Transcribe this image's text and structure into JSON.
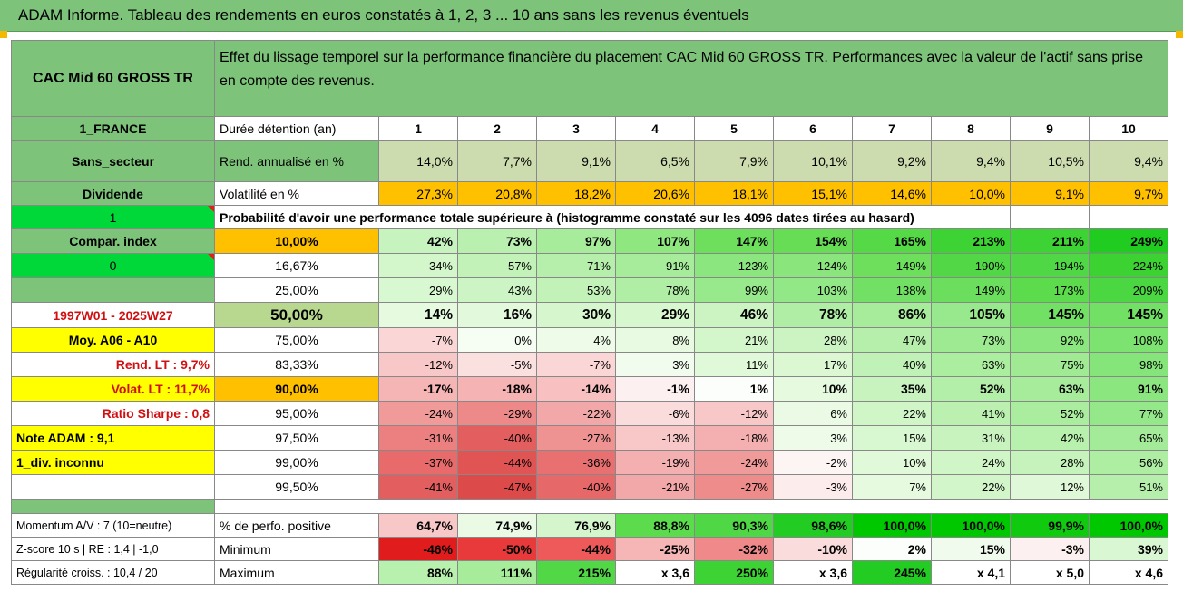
{
  "title": "ADAM Informe. Tableau des rendements en euros constatés à 1, 2, 3 ... 10 ans sans les revenus éventuels",
  "header": {
    "asset": "CAC Mid 60 GROSS TR",
    "description": "Effet du lissage temporel sur la performance financière du placement CAC Mid 60 GROSS TR. Performances avec la valeur de l'actif sans prise en compte des revenus."
  },
  "left_labels": {
    "country": "1_FRANCE",
    "sector": "Sans_secteur",
    "dividend": "Dividende",
    "one": "1",
    "compar": "Compar. index",
    "zero": "0",
    "period": "1997W01 - 2025W27",
    "moy": "Moy. A06 - A10",
    "rend_lt": "Rend. LT :   9,7%",
    "volat_lt": "Volat. LT :   11,7%",
    "sharpe": "Ratio Sharpe :   0,8",
    "note": "Note ADAM : 9,1",
    "div": "1_div. inconnu",
    "momentum": "Momentum A/V : 7 (10=neutre)",
    "zscore": "Z-score 10 s | RE : 1,4 | -1,0",
    "regularite": "Régularité croiss. : 10,4 / 20"
  },
  "row_labels": {
    "duree": "Durée détention (an)",
    "rend": "Rend. annualisé en %",
    "vol": "Volatilité en %",
    "proba": "Probabilité d'avoir une performance totale supérieure à (histogramme constaté sur les 4096 dates tirées au hasard)",
    "perf_pos": "% de perfo. positive",
    "minimum": "Minimum",
    "maximum": "Maximum"
  },
  "years": [
    "1",
    "2",
    "3",
    "4",
    "5",
    "6",
    "7",
    "8",
    "9",
    "10"
  ],
  "rend": [
    "14,0%",
    "7,7%",
    "9,1%",
    "6,5%",
    "7,9%",
    "10,1%",
    "9,2%",
    "9,4%",
    "10,5%",
    "9,4%"
  ],
  "vol": [
    "27,3%",
    "20,8%",
    "18,2%",
    "20,6%",
    "18,1%",
    "15,1%",
    "14,6%",
    "10,0%",
    "9,1%",
    "9,7%"
  ],
  "quantiles": [
    {
      "q": "10,00%",
      "v": [
        "42%",
        "73%",
        "97%",
        "107%",
        "147%",
        "154%",
        "165%",
        "213%",
        "211%",
        "249%"
      ]
    },
    {
      "q": "16,67%",
      "v": [
        "34%",
        "57%",
        "71%",
        "91%",
        "123%",
        "124%",
        "149%",
        "190%",
        "194%",
        "224%"
      ]
    },
    {
      "q": "25,00%",
      "v": [
        "29%",
        "43%",
        "53%",
        "78%",
        "99%",
        "103%",
        "138%",
        "149%",
        "173%",
        "209%"
      ]
    },
    {
      "q": "50,00%",
      "v": [
        "14%",
        "16%",
        "30%",
        "29%",
        "46%",
        "78%",
        "86%",
        "105%",
        "145%",
        "145%"
      ]
    },
    {
      "q": "75,00%",
      "v": [
        "-7%",
        "0%",
        "4%",
        "8%",
        "21%",
        "28%",
        "47%",
        "73%",
        "92%",
        "108%"
      ]
    },
    {
      "q": "83,33%",
      "v": [
        "-12%",
        "-5%",
        "-7%",
        "3%",
        "11%",
        "17%",
        "40%",
        "63%",
        "75%",
        "98%"
      ]
    },
    {
      "q": "90,00%",
      "v": [
        "-17%",
        "-18%",
        "-14%",
        "-1%",
        "1%",
        "10%",
        "35%",
        "52%",
        "63%",
        "91%"
      ]
    },
    {
      "q": "95,00%",
      "v": [
        "-24%",
        "-29%",
        "-22%",
        "-6%",
        "-12%",
        "6%",
        "22%",
        "41%",
        "52%",
        "77%"
      ]
    },
    {
      "q": "97,50%",
      "v": [
        "-31%",
        "-40%",
        "-27%",
        "-13%",
        "-18%",
        "3%",
        "15%",
        "31%",
        "42%",
        "65%"
      ]
    },
    {
      "q": "99,00%",
      "v": [
        "-37%",
        "-44%",
        "-36%",
        "-19%",
        "-24%",
        "-2%",
        "10%",
        "24%",
        "28%",
        "56%"
      ]
    },
    {
      "q": "99,50%",
      "v": [
        "-41%",
        "-47%",
        "-40%",
        "-21%",
        "-27%",
        "-3%",
        "7%",
        "22%",
        "12%",
        "51%"
      ]
    }
  ],
  "perf_pos": [
    "64,7%",
    "74,9%",
    "76,9%",
    "88,8%",
    "90,3%",
    "98,6%",
    "100,0%",
    "100,0%",
    "99,9%",
    "100,0%"
  ],
  "minimum": [
    "-46%",
    "-50%",
    "-44%",
    "-25%",
    "-32%",
    "-10%",
    "2%",
    "15%",
    "-3%",
    "39%"
  ],
  "maximum": [
    "88%",
    "111%",
    "215%",
    "x 3,6",
    "250%",
    "x 3,6",
    "245%",
    "x 4,1",
    "x 5,0",
    "x 4,6"
  ],
  "colors": {
    "quantiles": [
      [
        "#c7f3bf",
        "#b9f0b0",
        "#a6ec9b",
        "#8ee87f",
        "#6ddf5d",
        "#66dd55",
        "#55d946",
        "#3ed334",
        "#3ed334",
        "#20cc20"
      ],
      [
        "#d3f6cb",
        "#c3f2b9",
        "#b6efac",
        "#a6ec9b",
        "#8ce67f",
        "#8ae57c",
        "#6ddf5d",
        "#52d747",
        "#4fd745",
        "#3bd232"
      ],
      [
        "#d8f8d1",
        "#cdf4c4",
        "#c3f2b9",
        "#afeea4",
        "#97e98b",
        "#92e787",
        "#72e064",
        "#6cde5e",
        "#5cdb4d",
        "#4ad742"
      ],
      [
        "#e6fae0",
        "#e3f9dc",
        "#d6f7ce",
        "#d7f7cf",
        "#cbf4c2",
        "#afeea4",
        "#a6ec9b",
        "#98e98d",
        "#72e064",
        "#72e064"
      ],
      [
        "#fad6d6",
        "#f6fdf3",
        "#eefbe9",
        "#e9fae3",
        "#d3f6cb",
        "#cbf4c2",
        "#b6efac",
        "#9dea92",
        "#8ce67f",
        "#7ce370"
      ],
      [
        "#f8c7c7",
        "#fbe0e0",
        "#fad6d6",
        "#f2fcee",
        "#e0f9d9",
        "#dbf8d3",
        "#c0f1b6",
        "#acee9f",
        "#9fea93",
        "#86e57a"
      ],
      [
        "#f5b5b5",
        "#f5b3b3",
        "#f8c0c0",
        "#fdf0f0",
        "#fbfefa",
        "#e5fadf",
        "#c8f3bf",
        "#b3efa8",
        "#a6ec9b",
        "#8ce67f"
      ],
      [
        "#f09a9a",
        "#ed8989",
        "#f2a8a8",
        "#fbdcdc",
        "#f8c7c7",
        "#eafae4",
        "#d0f5c7",
        "#bbf0b0",
        "#aaed9e",
        "#95e88a"
      ],
      [
        "#ec8080",
        "#e35e5e",
        "#ef9292",
        "#f8c7c7",
        "#f4b0b0",
        "#eefbe9",
        "#d8f8d1",
        "#c8f3bf",
        "#b8f0ad",
        "#a3eb98"
      ],
      [
        "#e86a6a",
        "#e05454",
        "#e87070",
        "#f4b0b0",
        "#f09a9a",
        "#fdf4f4",
        "#e0f9d9",
        "#d0f5c7",
        "#c5f3bb",
        "#aeee a3"
      ],
      [
        "#e35e5e",
        "#dd4a4a",
        "#e66868",
        "#f2a8a8",
        "#ee8c8c",
        "#fcecec",
        "#e5fadf",
        "#d2f6ca",
        "#dff8d8",
        "#b6efac"
      ]
    ],
    "perf_pos": [
      "#f8c7c7",
      "#eafae4",
      "#d5f6cd",
      "#5cdb4d",
      "#4fd745",
      "#22cc22",
      "#00c800",
      "#00c800",
      "#10ca10",
      "#00c800"
    ],
    "minimum": [
      "#e01c1c",
      "#e83a3a",
      "#ee5a5a",
      "#f7b6b6",
      "#f08a8a",
      "#fbdcdc",
      "#fbfefa",
      "#f1fbed",
      "#fdf0f0",
      "#d9f7d2"
    ],
    "maximum": [
      "#b8f0ad",
      "#a6ec9b",
      "#52d747",
      "#ffffff",
      "#3ed334",
      "#ffffff",
      "#22cc22",
      "#ffffff",
      "#ffffff",
      "#ffffff"
    ]
  }
}
